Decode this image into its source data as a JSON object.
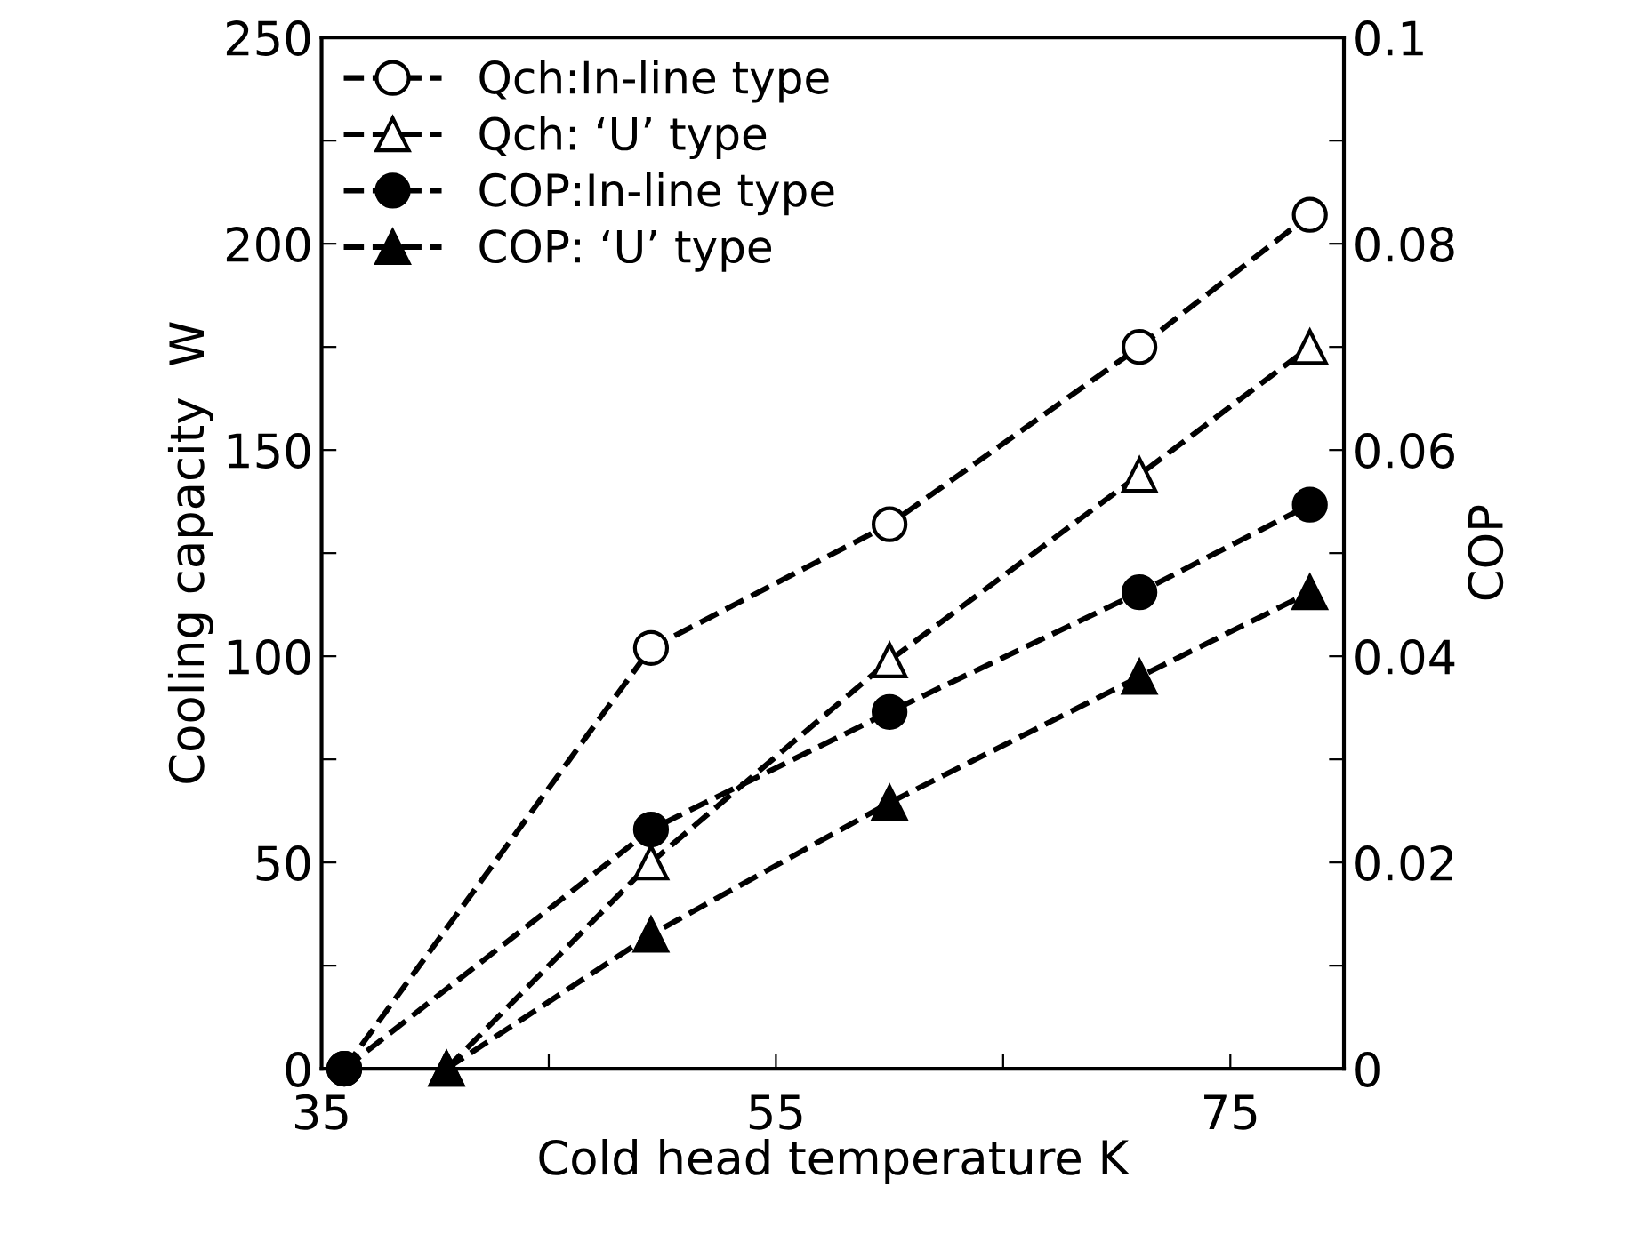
{
  "chart_data": {
    "type": "line",
    "xlabel": "Cold head temperature K",
    "ylabel": "Cooling capacity  W",
    "y2label": "COP",
    "xlim": [
      35,
      80
    ],
    "xticks": [
      35,
      {
        "value": 45,
        "label": null
      },
      55,
      {
        "value": 65,
        "label": null
      },
      75
    ],
    "ylim": [
      0,
      250
    ],
    "yticks": [
      0,
      {
        "value": 25,
        "label": null
      },
      50,
      {
        "value": 75,
        "label": null
      },
      100,
      {
        "value": 125,
        "label": null
      },
      150,
      {
        "value": 175,
        "label": null
      },
      200,
      {
        "value": 225,
        "label": null
      },
      250
    ],
    "y2lim": [
      0,
      0.1
    ],
    "y2ticks": [
      0,
      {
        "value": 0.01,
        "label": null
      },
      0.02,
      {
        "value": 0.03,
        "label": null
      },
      0.04,
      {
        "value": 0.05,
        "label": null
      },
      0.06,
      {
        "value": 0.07,
        "label": null
      },
      0.08,
      {
        "value": 0.09,
        "label": null
      },
      0.1
    ],
    "legend": "top left",
    "line_style": "dashed",
    "grid": false,
    "series": [
      {
        "name": "Qch:In-line type",
        "color": "#000000",
        "marker": "circle",
        "x": [
          36,
          49.5,
          60,
          71,
          78.5
        ],
        "values": [
          0,
          102,
          132,
          175,
          207
        ]
      },
      {
        "name": "Qch: ‘U’ type",
        "color": "#000000",
        "marker": "triangle",
        "x": [
          40.5,
          49.5,
          60,
          71,
          78.5
        ],
        "values": [
          0,
          50,
          99,
          144,
          175
        ]
      },
      {
        "name": "COP:In-line type",
        "color": "#000000",
        "marker": "circle",
        "axis": "y2",
        "x": [
          36,
          49.5,
          60,
          71,
          78.5
        ],
        "values": [
          0,
          0.0232,
          0.0346,
          0.0462,
          0.0547
        ]
      },
      {
        "name": "COP: ‘U’ type",
        "color": "#000000",
        "marker": "triangle",
        "axis": "y2",
        "x": [
          40.5,
          49.5,
          60,
          71,
          78.5
        ],
        "values": [
          0,
          0.013,
          0.0258,
          0.038,
          0.0462
        ]
      }
    ]
  }
}
